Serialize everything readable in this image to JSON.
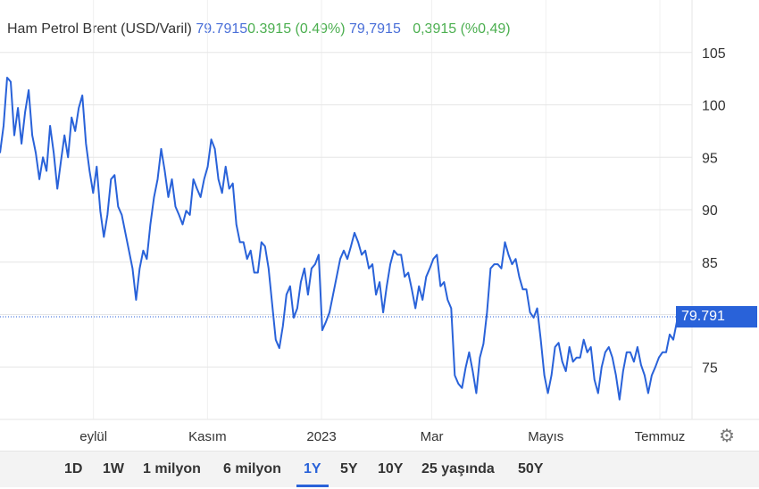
{
  "header": {
    "name": "Ham Petrol Brent (USD/Varil)",
    "price": "79.7915",
    "change": "0.3915 (0.49%)",
    "price_local": "79,7915",
    "change_local": "0,3915 (%0,49)"
  },
  "current_badge": "79.791",
  "ranges": [
    {
      "label": "1D"
    },
    {
      "label": "1W"
    },
    {
      "label": "1 milyon"
    },
    {
      "label": "6 milyon"
    },
    {
      "label": "1Y",
      "active": true
    },
    {
      "label": "5Y"
    },
    {
      "label": "10Y"
    },
    {
      "label": "25 yaşında"
    },
    {
      "label": "50Y"
    }
  ],
  "settings_icon": "gear-icon",
  "colors": {
    "line": "#2962d9",
    "up": "#4caf50",
    "grid": "#e6e6e6"
  },
  "chart_data": {
    "type": "line",
    "title": "",
    "x_range": [
      "2022-07-13",
      "2023-07-12"
    ],
    "ylim": [
      70,
      110
    ],
    "y_ticks": [
      75,
      80,
      85,
      90,
      95,
      100,
      105
    ],
    "y_tick_labels": [
      "75",
      "",
      "85",
      "90",
      "95",
      "100",
      "105"
    ],
    "x_ticks": [
      {
        "date": "2022-09-01",
        "label": "eylül"
      },
      {
        "date": "2022-11-01",
        "label": "Kasım"
      },
      {
        "date": "2023-01-01",
        "label": "2023"
      },
      {
        "date": "2023-03-01",
        "label": "Mar"
      },
      {
        "date": "2023-05-01",
        "label": "Mayıs"
      },
      {
        "date": "2023-07-01",
        "label": "Temmuz"
      }
    ],
    "grid": true,
    "current_value": 79.7915,
    "values": [
      95.4,
      98,
      102.6,
      102.2,
      97.1,
      99.7,
      96.3,
      99.3,
      101.4,
      97.1,
      95.4,
      92.9,
      95,
      93.7,
      98,
      95.4,
      92,
      94.6,
      97.1,
      95,
      98.8,
      97.5,
      99.7,
      100.9,
      96.3,
      93.7,
      91.6,
      94.1,
      89.9,
      87.4,
      89.5,
      92.9,
      93.3,
      90.3,
      89.5,
      87.8,
      86.1,
      84.4,
      81.4,
      84.4,
      86.1,
      85.3,
      88.6,
      91.2,
      92.9,
      95.8,
      93.7,
      91.2,
      92.9,
      90.3,
      89.5,
      88.6,
      89.9,
      89.5,
      92.9,
      92,
      91.2,
      92.9,
      94.1,
      96.7,
      95.8,
      92.9,
      91.6,
      94.1,
      92,
      92.5,
      88.6,
      86.9,
      86.9,
      85.3,
      86.1,
      84,
      84,
      86.9,
      86.5,
      84.4,
      81,
      77.6,
      76.8,
      78.9,
      81.9,
      82.7,
      79.7,
      80.6,
      83.1,
      84.4,
      81.9,
      84.4,
      84.8,
      85.7,
      78.5,
      79.3,
      80.2,
      81.9,
      83.6,
      85.3,
      86.1,
      85.3,
      86.5,
      87.8,
      86.9,
      85.7,
      86.1,
      84.4,
      84.8,
      81.9,
      83.1,
      80.2,
      82.7,
      84.8,
      86.1,
      85.7,
      85.7,
      83.6,
      84,
      82.4,
      80.6,
      82.7,
      81.4,
      83.6,
      84.4,
      85.3,
      85.7,
      82.7,
      83.1,
      81.4,
      80.6,
      74.2,
      73.4,
      73,
      74.9,
      76.4,
      74.6,
      72.5,
      75.9,
      77.2,
      80.2,
      84.4,
      84.8,
      84.8,
      84.4,
      86.9,
      85.7,
      84.8,
      85.3,
      83.6,
      82.4,
      82.4,
      80.2,
      79.7,
      80.6,
      77.6,
      74.2,
      72.5,
      74.2,
      76.9,
      77.3,
      75.5,
      74.6,
      76.9,
      75.5,
      75.9,
      75.9,
      77.6,
      76.4,
      76.9,
      73.8,
      72.5,
      75,
      76.4,
      76.9,
      75.9,
      74.2,
      71.9,
      74.6,
      76.4,
      76.4,
      75.5,
      76.9,
      75.2,
      74.2,
      72.5,
      74.2,
      75,
      75.9,
      76.4,
      76.4,
      78.1,
      77.6,
      79.3,
      79.79
    ]
  }
}
